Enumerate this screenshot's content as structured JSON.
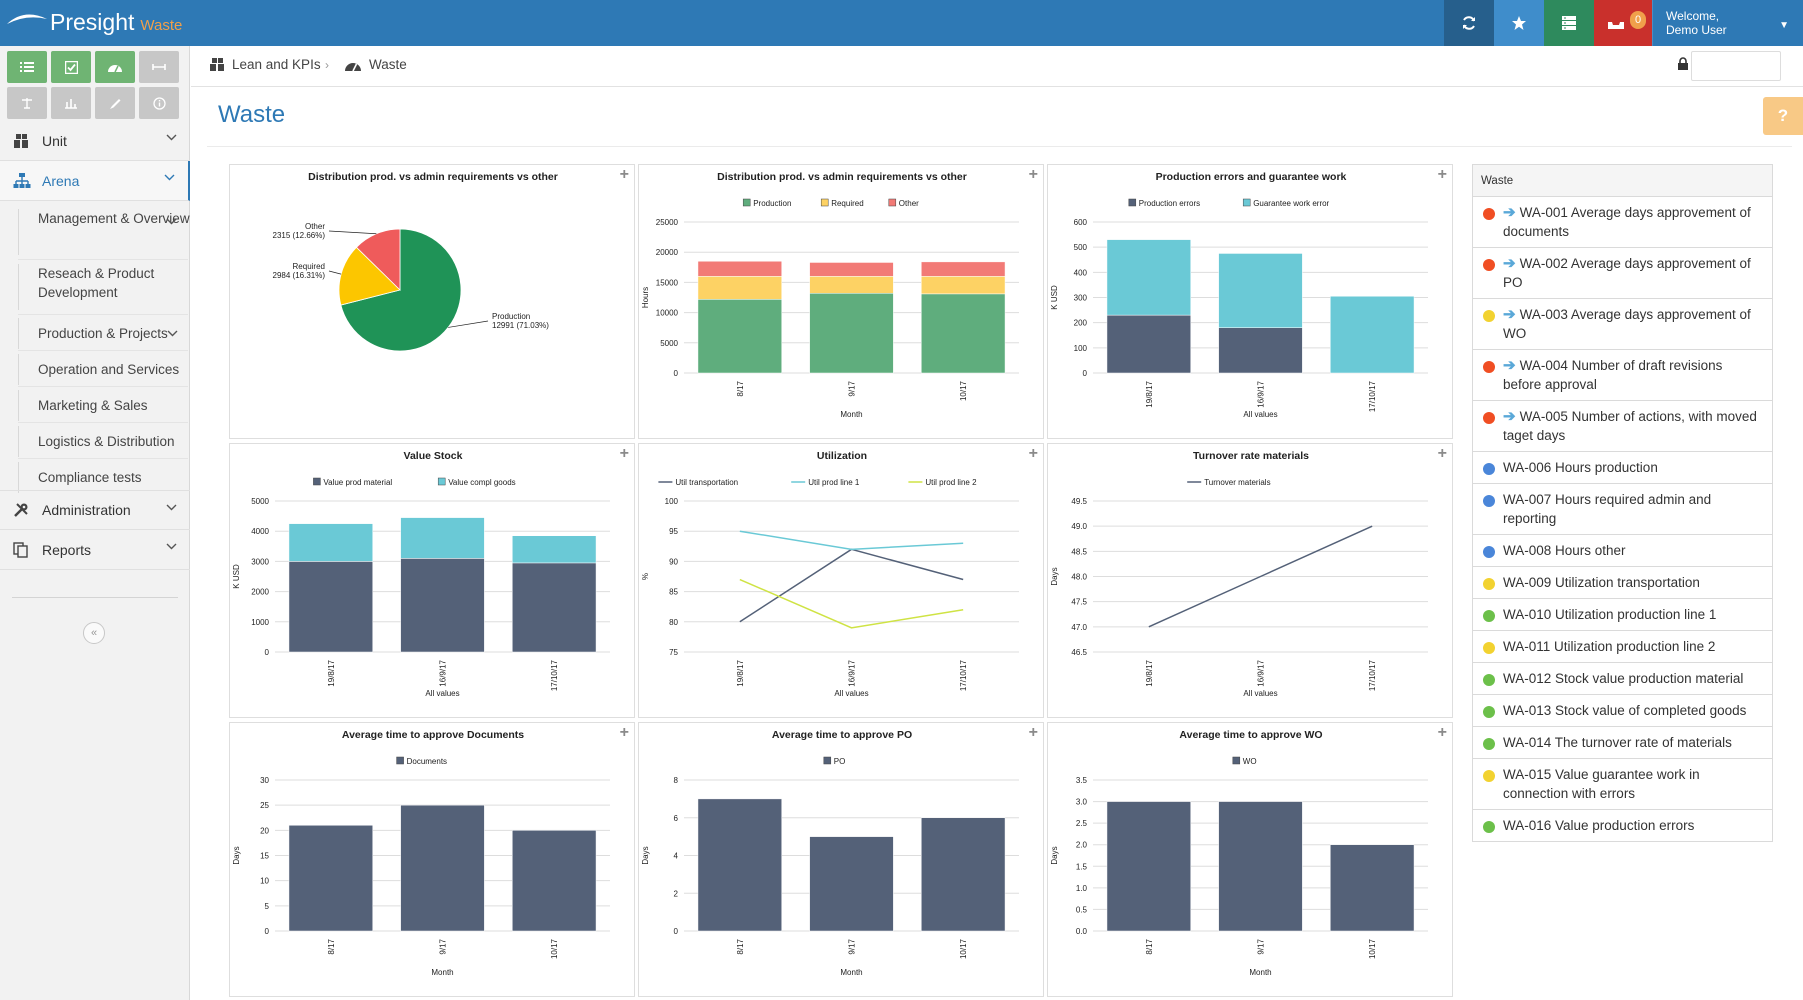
{
  "app": {
    "name": "Presight",
    "module": "Waste"
  },
  "topbar": {
    "badge_count": "0",
    "welcome": "Welcome,",
    "user": "Demo User"
  },
  "sidebar": {
    "items": [
      {
        "label": "Unit"
      },
      {
        "label": "Arena"
      },
      {
        "label": "Administration"
      },
      {
        "label": "Reports"
      }
    ],
    "subitems": [
      {
        "label": "Management & Overview"
      },
      {
        "label": "Reseach & Product Development"
      },
      {
        "label": "Production & Projects"
      },
      {
        "label": "Operation and Services"
      },
      {
        "label": "Marketing & Sales"
      },
      {
        "label": "Logistics & Distribution"
      },
      {
        "label": "Compliance tests"
      }
    ]
  },
  "breadcrumb": {
    "parent": "Lean and KPIs",
    "current": "Waste"
  },
  "page": {
    "title": "Waste"
  },
  "colors": {
    "accent": "#2e79b5",
    "production": "#5fad7d",
    "required": "#fdd264",
    "other": "#f27a76",
    "navy": "#546178",
    "teal": "#6ac9d6",
    "lime": "#cfe344",
    "pie_green": "#1f9357",
    "pie_yellow": "#fcc600",
    "pie_red": "#ef5b5b"
  },
  "chart_data": [
    {
      "type": "pie",
      "title": "Distribution prod. vs admin requirements vs other",
      "slices": [
        {
          "name": "Production",
          "value": 12991,
          "label": "12991 (71.03%)"
        },
        {
          "name": "Required",
          "value": 2984,
          "label": "2984 (16.31%)"
        },
        {
          "name": "Other",
          "value": 2315,
          "label": "2315 (12.66%)"
        }
      ]
    },
    {
      "type": "bar",
      "stacked": true,
      "title": "Distribution prod. vs admin requirements vs other",
      "categories": [
        "8/17",
        "9/17",
        "10/17"
      ],
      "xlabel": "Month",
      "ylabel": "Hours",
      "ylim": [
        0,
        25000
      ],
      "yticks": [
        "25000",
        "20000",
        "15000",
        "10000",
        "5000",
        "0"
      ],
      "series": [
        {
          "name": "Production",
          "values": [
            12200,
            13200,
            13100
          ]
        },
        {
          "name": "Required",
          "values": [
            3800,
            2800,
            2900
          ]
        },
        {
          "name": "Other",
          "values": [
            2500,
            2300,
            2400
          ]
        }
      ]
    },
    {
      "type": "bar",
      "stacked": true,
      "title": "Production errors and guarantee work",
      "categories": [
        "19/8/17",
        "16/9/17",
        "17/10/17"
      ],
      "xlabel": "All values",
      "ylabel": "K USD",
      "ylim": [
        0,
        600
      ],
      "yticks": [
        "600",
        "500",
        "400",
        "300",
        "200",
        "100",
        "0"
      ],
      "series": [
        {
          "name": "Production errors",
          "values": [
            230,
            180,
            0
          ]
        },
        {
          "name": "Guarantee work error",
          "values": [
            300,
            295,
            305
          ]
        }
      ]
    },
    {
      "type": "bar",
      "stacked": true,
      "title": "Value Stock",
      "categories": [
        "19/8/17",
        "16/9/17",
        "17/10/17"
      ],
      "xlabel": "All values",
      "ylabel": "K USD",
      "ylim": [
        0,
        5000
      ],
      "yticks": [
        "5000",
        "4000",
        "3000",
        "2000",
        "1000",
        "0"
      ],
      "series": [
        {
          "name": "Value prod material",
          "values": [
            3000,
            3100,
            2950
          ]
        },
        {
          "name": "Value compl goods",
          "values": [
            1250,
            1350,
            900
          ]
        }
      ]
    },
    {
      "type": "line",
      "title": "Utilization",
      "categories": [
        "19/8/17",
        "16/9/17",
        "17/10/17"
      ],
      "xlabel": "All values",
      "ylabel": "%",
      "ylim": [
        75,
        100
      ],
      "yticks": [
        "100",
        "95",
        "90",
        "85",
        "80",
        "75"
      ],
      "series": [
        {
          "name": "Util transportation",
          "values": [
            80,
            92,
            87
          ]
        },
        {
          "name": "Util prod line 1",
          "values": [
            95,
            92,
            93
          ]
        },
        {
          "name": "Util prod line 2",
          "values": [
            87,
            79,
            82
          ]
        }
      ]
    },
    {
      "type": "line",
      "title": "Turnover rate materials",
      "categories": [
        "19/8/17",
        "16/9/17",
        "17/10/17"
      ],
      "xlabel": "All values",
      "ylabel": "Days",
      "ylim": [
        46.5,
        49.5
      ],
      "yticks": [
        "49.5",
        "49.0",
        "48.5",
        "48.0",
        "47.5",
        "47.0",
        "46.5"
      ],
      "series": [
        {
          "name": "Turnover materials",
          "values": [
            47.0,
            48.0,
            49.0
          ]
        }
      ]
    },
    {
      "type": "bar",
      "title": "Average time to approve Documents",
      "categories": [
        "8/17",
        "9/17",
        "10/17"
      ],
      "xlabel": "Month",
      "ylabel": "Days",
      "ylim": [
        0,
        30
      ],
      "yticks": [
        "30",
        "25",
        "20",
        "15",
        "10",
        "5",
        "0"
      ],
      "series": [
        {
          "name": "Documents",
          "values": [
            21,
            25,
            20
          ]
        }
      ]
    },
    {
      "type": "bar",
      "title": "Average time to approve PO",
      "categories": [
        "8/17",
        "9/17",
        "10/17"
      ],
      "xlabel": "Month",
      "ylabel": "Days",
      "ylim": [
        0,
        8
      ],
      "yticks": [
        "8",
        "6",
        "4",
        "2",
        "0"
      ],
      "series": [
        {
          "name": "PO",
          "values": [
            7,
            5,
            6
          ]
        }
      ]
    },
    {
      "type": "bar",
      "title": "Average time to approve WO",
      "categories": [
        "8/17",
        "9/17",
        "10/17"
      ],
      "xlabel": "Month",
      "ylabel": "Days",
      "ylim": [
        0,
        3.5
      ],
      "yticks": [
        "3.5",
        "3.0",
        "2.5",
        "2.0",
        "1.5",
        "1.0",
        "0.5",
        "0.0"
      ],
      "series": [
        {
          "name": "WO",
          "values": [
            3,
            3,
            2
          ]
        }
      ]
    }
  ],
  "waste_list": {
    "header": "Waste",
    "items": [
      {
        "text": "WA-001 Average days approvement of documents",
        "status": "#f04e23",
        "arrow": true
      },
      {
        "text": "WA-002 Average days approvement of PO",
        "status": "#f04e23",
        "arrow": true
      },
      {
        "text": "WA-003 Average days approvement of WO",
        "status": "#f2d230",
        "arrow": true
      },
      {
        "text": "WA-004 Number of draft revisions before approval",
        "status": "#f04e23",
        "arrow": true
      },
      {
        "text": "WA-005 Number of actions, with moved taget days",
        "status": "#f04e23",
        "arrow": true
      },
      {
        "text": "WA-006 Hours production",
        "status": "#4a86d9",
        "arrow": false
      },
      {
        "text": "WA-007 Hours required admin and reporting",
        "status": "#4a86d9",
        "arrow": false
      },
      {
        "text": "WA-008 Hours other",
        "status": "#4a86d9",
        "arrow": false
      },
      {
        "text": "WA-009 Utilization transportation",
        "status": "#f2d230",
        "arrow": false
      },
      {
        "text": "WA-010 Utilization production line 1",
        "status": "#6cc04a",
        "arrow": false
      },
      {
        "text": "WA-011 Utilization production line 2",
        "status": "#f2d230",
        "arrow": false
      },
      {
        "text": "WA-012 Stock value production material",
        "status": "#6cc04a",
        "arrow": false
      },
      {
        "text": "WA-013 Stock value of completed goods",
        "status": "#6cc04a",
        "arrow": false
      },
      {
        "text": "WA-014 The turnover rate of materials",
        "status": "#6cc04a",
        "arrow": false
      },
      {
        "text": "WA-015 Value guarantee work in connection with errors",
        "status": "#f2d230",
        "arrow": false
      },
      {
        "text": "WA-016 Value production errors",
        "status": "#6cc04a",
        "arrow": false
      }
    ]
  }
}
